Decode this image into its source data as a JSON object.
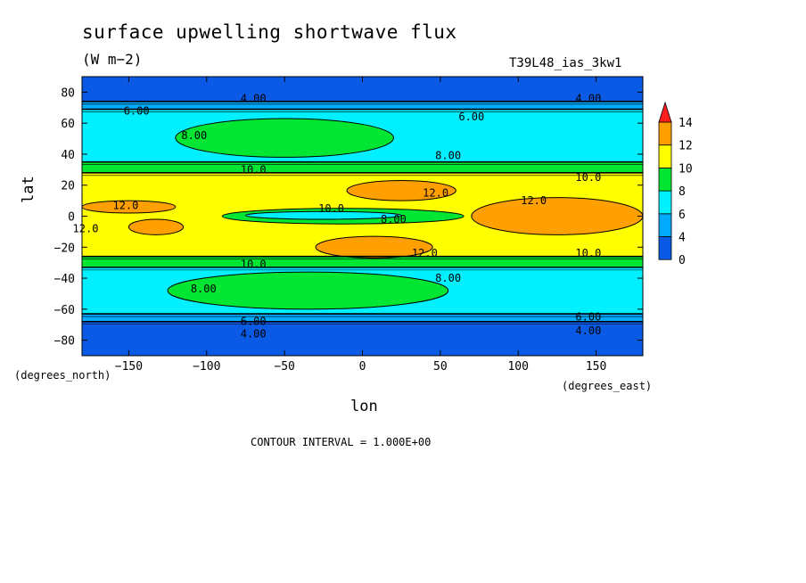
{
  "chart_data": {
    "type": "heatmap",
    "title": "surface upwelling shortwave flux",
    "units": "(W m−2)",
    "run_id": "T39L48_ias_3kw1",
    "xlabel": "lon",
    "ylabel": "lat",
    "x_units_note": "(degrees_east)",
    "y_units_note": "(degrees_north)",
    "xlim": [
      -180,
      180
    ],
    "ylim": [
      -90,
      90
    ],
    "x_ticks": [
      -150,
      -100,
      -50,
      0,
      50,
      100,
      150
    ],
    "y_ticks": [
      80,
      60,
      40,
      20,
      0,
      -20,
      -40,
      -60,
      -80
    ],
    "contour_interval_text": "CONTOUR INTERVAL = 1.000E+00",
    "colorbar": {
      "levels": [
        0,
        2,
        4,
        6,
        8,
        10,
        12,
        14
      ],
      "labels": [
        "14",
        "12",
        "10",
        "8",
        "6",
        "4",
        "0"
      ],
      "colors": [
        "#0a5ae6",
        "#00aaff",
        "#00f0ff",
        "#00e632",
        "#ffff00",
        "#ffa000",
        "#ff1e1e"
      ]
    },
    "latitude_profile": [
      {
        "lat": [
          90,
          74
        ],
        "value": 3.5
      },
      {
        "lat": [
          74,
          69
        ],
        "value": 5.0
      },
      {
        "lat": [
          69,
          35
        ],
        "value": 7.0
      },
      {
        "lat": [
          35,
          28
        ],
        "value": 9.0
      },
      {
        "lat": [
          28,
          -26
        ],
        "value": 11.0
      },
      {
        "lat": [
          -26,
          -33
        ],
        "value": 9.0
      },
      {
        "lat": [
          -33,
          -63
        ],
        "value": 7.0
      },
      {
        "lat": [
          -63,
          -68
        ],
        "value": 5.0
      },
      {
        "lat": [
          -68,
          -90
        ],
        "value": 3.5
      }
    ],
    "regions": [
      {
        "value": 9.0,
        "note": "NH subtropical high",
        "lon": [
          -120,
          20
        ],
        "lat": [
          63,
          38
        ]
      },
      {
        "value": 9.0,
        "note": "SH subtropical high",
        "lon": [
          -125,
          55
        ],
        "lat": [
          -36,
          -60
        ]
      },
      {
        "value": 13.0,
        "note": "N tropical max",
        "lon": [
          -10,
          60
        ],
        "lat": [
          23,
          10
        ]
      },
      {
        "value": 13.0,
        "note": "S tropical max",
        "lon": [
          -30,
          45
        ],
        "lat": [
          -13,
          -27
        ]
      },
      {
        "value": 13.0,
        "note": "W Pacific max",
        "lon": [
          -180,
          -120
        ],
        "lat": [
          10,
          2
        ]
      },
      {
        "value": 13.0,
        "note": "W tropical max",
        "lon": [
          -150,
          -115
        ],
        "lat": [
          -2,
          -12
        ]
      },
      {
        "value": 13.0,
        "note": "E tropical max",
        "lon": [
          70,
          180
        ],
        "lat": [
          12,
          -12
        ]
      },
      {
        "value": 9.0,
        "note": "equatorial min",
        "lon": [
          -90,
          65
        ],
        "lat": [
          5,
          -5
        ]
      },
      {
        "value": 7.0,
        "note": "equatorial core",
        "lon": [
          -75,
          25
        ],
        "lat": [
          3,
          -2
        ]
      }
    ],
    "contour_labels": [
      {
        "text": "4.00",
        "lon": -70,
        "lat": 76
      },
      {
        "text": "4.00",
        "lon": 145,
        "lat": 76
      },
      {
        "text": "6.00",
        "lon": -145,
        "lat": 68
      },
      {
        "text": "6.00",
        "lon": 70,
        "lat": 64
      },
      {
        "text": "8.00",
        "lon": -108,
        "lat": 52
      },
      {
        "text": "8.00",
        "lon": 55,
        "lat": 39
      },
      {
        "text": "10.0",
        "lon": -70,
        "lat": 30
      },
      {
        "text": "10.0",
        "lon": 145,
        "lat": 25
      },
      {
        "text": "12.0",
        "lon": 47,
        "lat": 15
      },
      {
        "text": "12.0",
        "lon": -152,
        "lat": 7
      },
      {
        "text": "12.0",
        "lon": 110,
        "lat": 10
      },
      {
        "text": "10.0",
        "lon": -20,
        "lat": 5
      },
      {
        "text": "8.00",
        "lon": 20,
        "lat": -2
      },
      {
        "text": "12.0",
        "lon": 40,
        "lat": -24
      },
      {
        "text": "12.0",
        "lon": -180,
        "lat": -8
      },
      {
        "text": "10.0",
        "lon": 145,
        "lat": -24
      },
      {
        "text": "10.0",
        "lon": -70,
        "lat": -31
      },
      {
        "text": "8.00",
        "lon": -102,
        "lat": -47
      },
      {
        "text": "8.00",
        "lon": 55,
        "lat": -40
      },
      {
        "text": "6.00",
        "lon": -70,
        "lat": -68
      },
      {
        "text": "6.00",
        "lon": 145,
        "lat": -65
      },
      {
        "text": "4.00",
        "lon": -70,
        "lat": -76
      },
      {
        "text": "4.00",
        "lon": 145,
        "lat": -74
      }
    ]
  }
}
